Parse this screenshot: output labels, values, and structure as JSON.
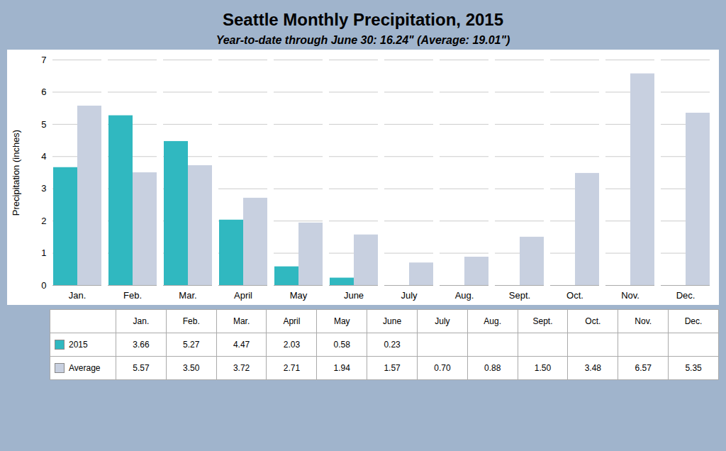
{
  "chart_data": {
    "type": "bar",
    "title": "Seattle Monthly Precipitation, 2015",
    "subtitle": "Year-to-date through June 30: 16.24\" (Average: 19.01\")",
    "categories": [
      "Jan.",
      "Feb.",
      "Mar.",
      "April",
      "May",
      "June",
      "July",
      "Aug.",
      "Sept.",
      "Oct.",
      "Nov.",
      "Dec."
    ],
    "series": [
      {
        "name": "2015",
        "color": "#30b8c0",
        "values": [
          3.66,
          5.27,
          4.47,
          2.03,
          0.58,
          0.23,
          null,
          null,
          null,
          null,
          null,
          null
        ],
        "value_labels": [
          "3.66",
          "5.27",
          "4.47",
          "2.03",
          "0.58",
          "0.23",
          null,
          null,
          null,
          null,
          null,
          null
        ]
      },
      {
        "name": "Average",
        "color": "#c8d0e0",
        "values": [
          5.57,
          3.5,
          3.72,
          2.71,
          1.94,
          1.57,
          0.7,
          0.88,
          1.5,
          3.48,
          6.57,
          5.35
        ],
        "value_labels": [
          "5.57",
          "3.50",
          "3.72",
          "2.71",
          "1.94",
          "1.57",
          "0.70",
          "0.88",
          "1.50",
          "3.48",
          "6.57",
          "5.35"
        ]
      }
    ],
    "ylabel": "Precipitation (inches)",
    "ylim": [
      0,
      7
    ],
    "yticks": [
      0,
      1,
      2,
      3,
      4,
      5,
      6,
      7
    ],
    "grid": true,
    "legend": "bottom"
  }
}
